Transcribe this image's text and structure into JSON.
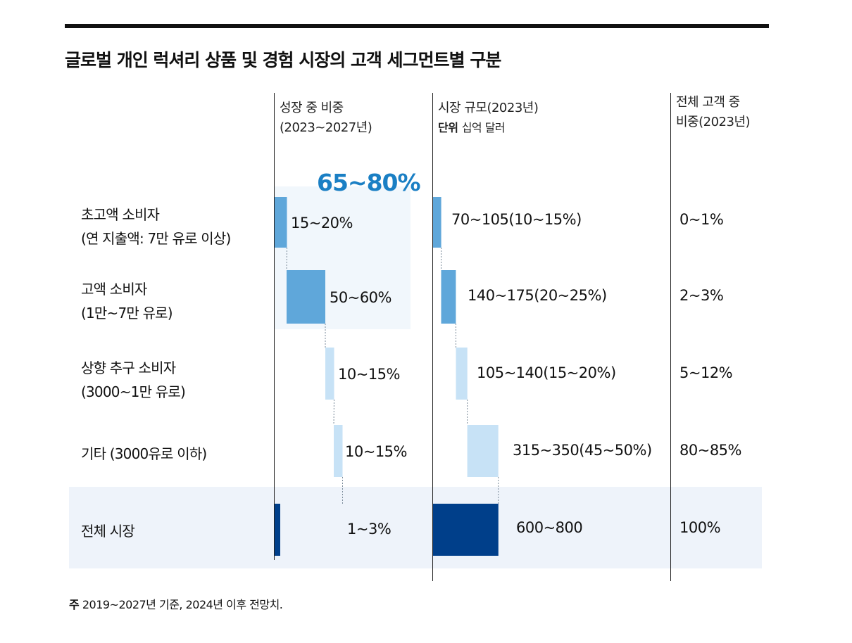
{
  "title": "글로벌 개인 럭셔리 상품 및 경험 시장의 고객 세그먼트별 구분",
  "columns": {
    "growth": {
      "line1": "성장 중 비중",
      "line2": "(2023~2027년)"
    },
    "market": {
      "line1": "시장 규모(2023년)",
      "unit_label": "단위",
      "unit_value": "십억 달러"
    },
    "share": {
      "line1": "전체 고객 중",
      "line2": "비중(2023년)"
    }
  },
  "group_highlight": "65~80%",
  "footnote": {
    "label": "주",
    "text": "2019~2027년 기준, 2024년 이후 전망치."
  },
  "chart_data": {
    "type": "waterfall",
    "title": "글로벌 개인 럭셔리 상품 및 경험 시장의 고객 세그먼트별 구분",
    "categories": [
      {
        "line1": "초고액 소비자",
        "line2": "(연 지출액: 7만 유로 이상)"
      },
      {
        "line1": "고액 소비자",
        "line2": "(1만~7만 유로)"
      },
      {
        "line1": "상향 추구 소비자",
        "line2": "(3000~1만 유로)"
      },
      {
        "line1": "기타 (3000유로 이하)",
        "line2": ""
      },
      {
        "line1": "전체 시장",
        "line2": ""
      }
    ],
    "growth_share": {
      "header": "성장 중 비중 (2023~2027년)",
      "labels": [
        "15~20%",
        "50~60%",
        "10~15%",
        "10~15%",
        "1~3%"
      ],
      "low": [
        15,
        50,
        10,
        10,
        1
      ],
      "high": [
        20,
        60,
        15,
        15,
        3
      ],
      "cumulative_start": [
        0,
        17,
        72,
        84,
        0
      ],
      "total_span": 100,
      "highlight_group": "65~80%"
    },
    "market_size": {
      "header": "시장 규모(2023년)",
      "unit": "십억 달러",
      "labels": [
        "70~105(10~15%)",
        "140~175(20~25%)",
        "105~140(15~20%)",
        "315~350(45~50%)",
        "600~800"
      ],
      "low": [
        70,
        140,
        105,
        315,
        600
      ],
      "high": [
        105,
        175,
        140,
        350,
        800
      ],
      "cumulative_start": [
        0,
        87,
        245,
        367,
        0
      ]
    },
    "customer_share": {
      "header": "전체 고객 중 비중(2023년)",
      "labels": [
        "0~1%",
        "2~3%",
        "5~12%",
        "80~85%",
        "100%"
      ]
    },
    "colors": {
      "top": "#5fa7da",
      "high": "#5fa7da",
      "aspirational": "#c7e2f6",
      "other": "#c7e2f6",
      "total": "#003f8a",
      "connector": "#7a8a99",
      "highlight_text": "#1a7fc4"
    }
  }
}
